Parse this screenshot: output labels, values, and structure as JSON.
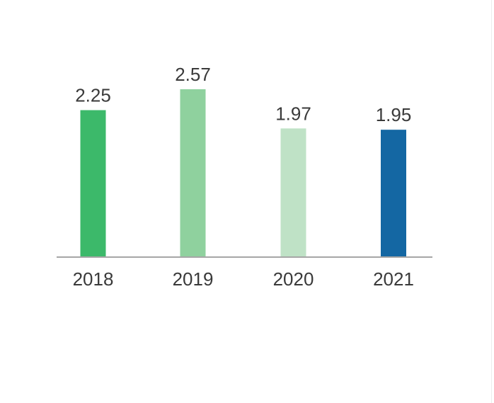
{
  "chart_data": {
    "type": "bar",
    "categories": [
      "2018",
      "2019",
      "2020",
      "2021"
    ],
    "values": [
      2.25,
      2.57,
      1.97,
      1.95
    ],
    "value_labels": [
      "2.25",
      "2.57",
      "1.97",
      "1.95"
    ],
    "colors": [
      "#3cb96a",
      "#8fd19e",
      "#bfe2c6",
      "#1467a3"
    ],
    "axis_color": "#a6a6a6",
    "title": "",
    "xlabel": "",
    "ylabel": "",
    "ylim": [
      0,
      2.57
    ],
    "grid": false,
    "legend": "none"
  }
}
